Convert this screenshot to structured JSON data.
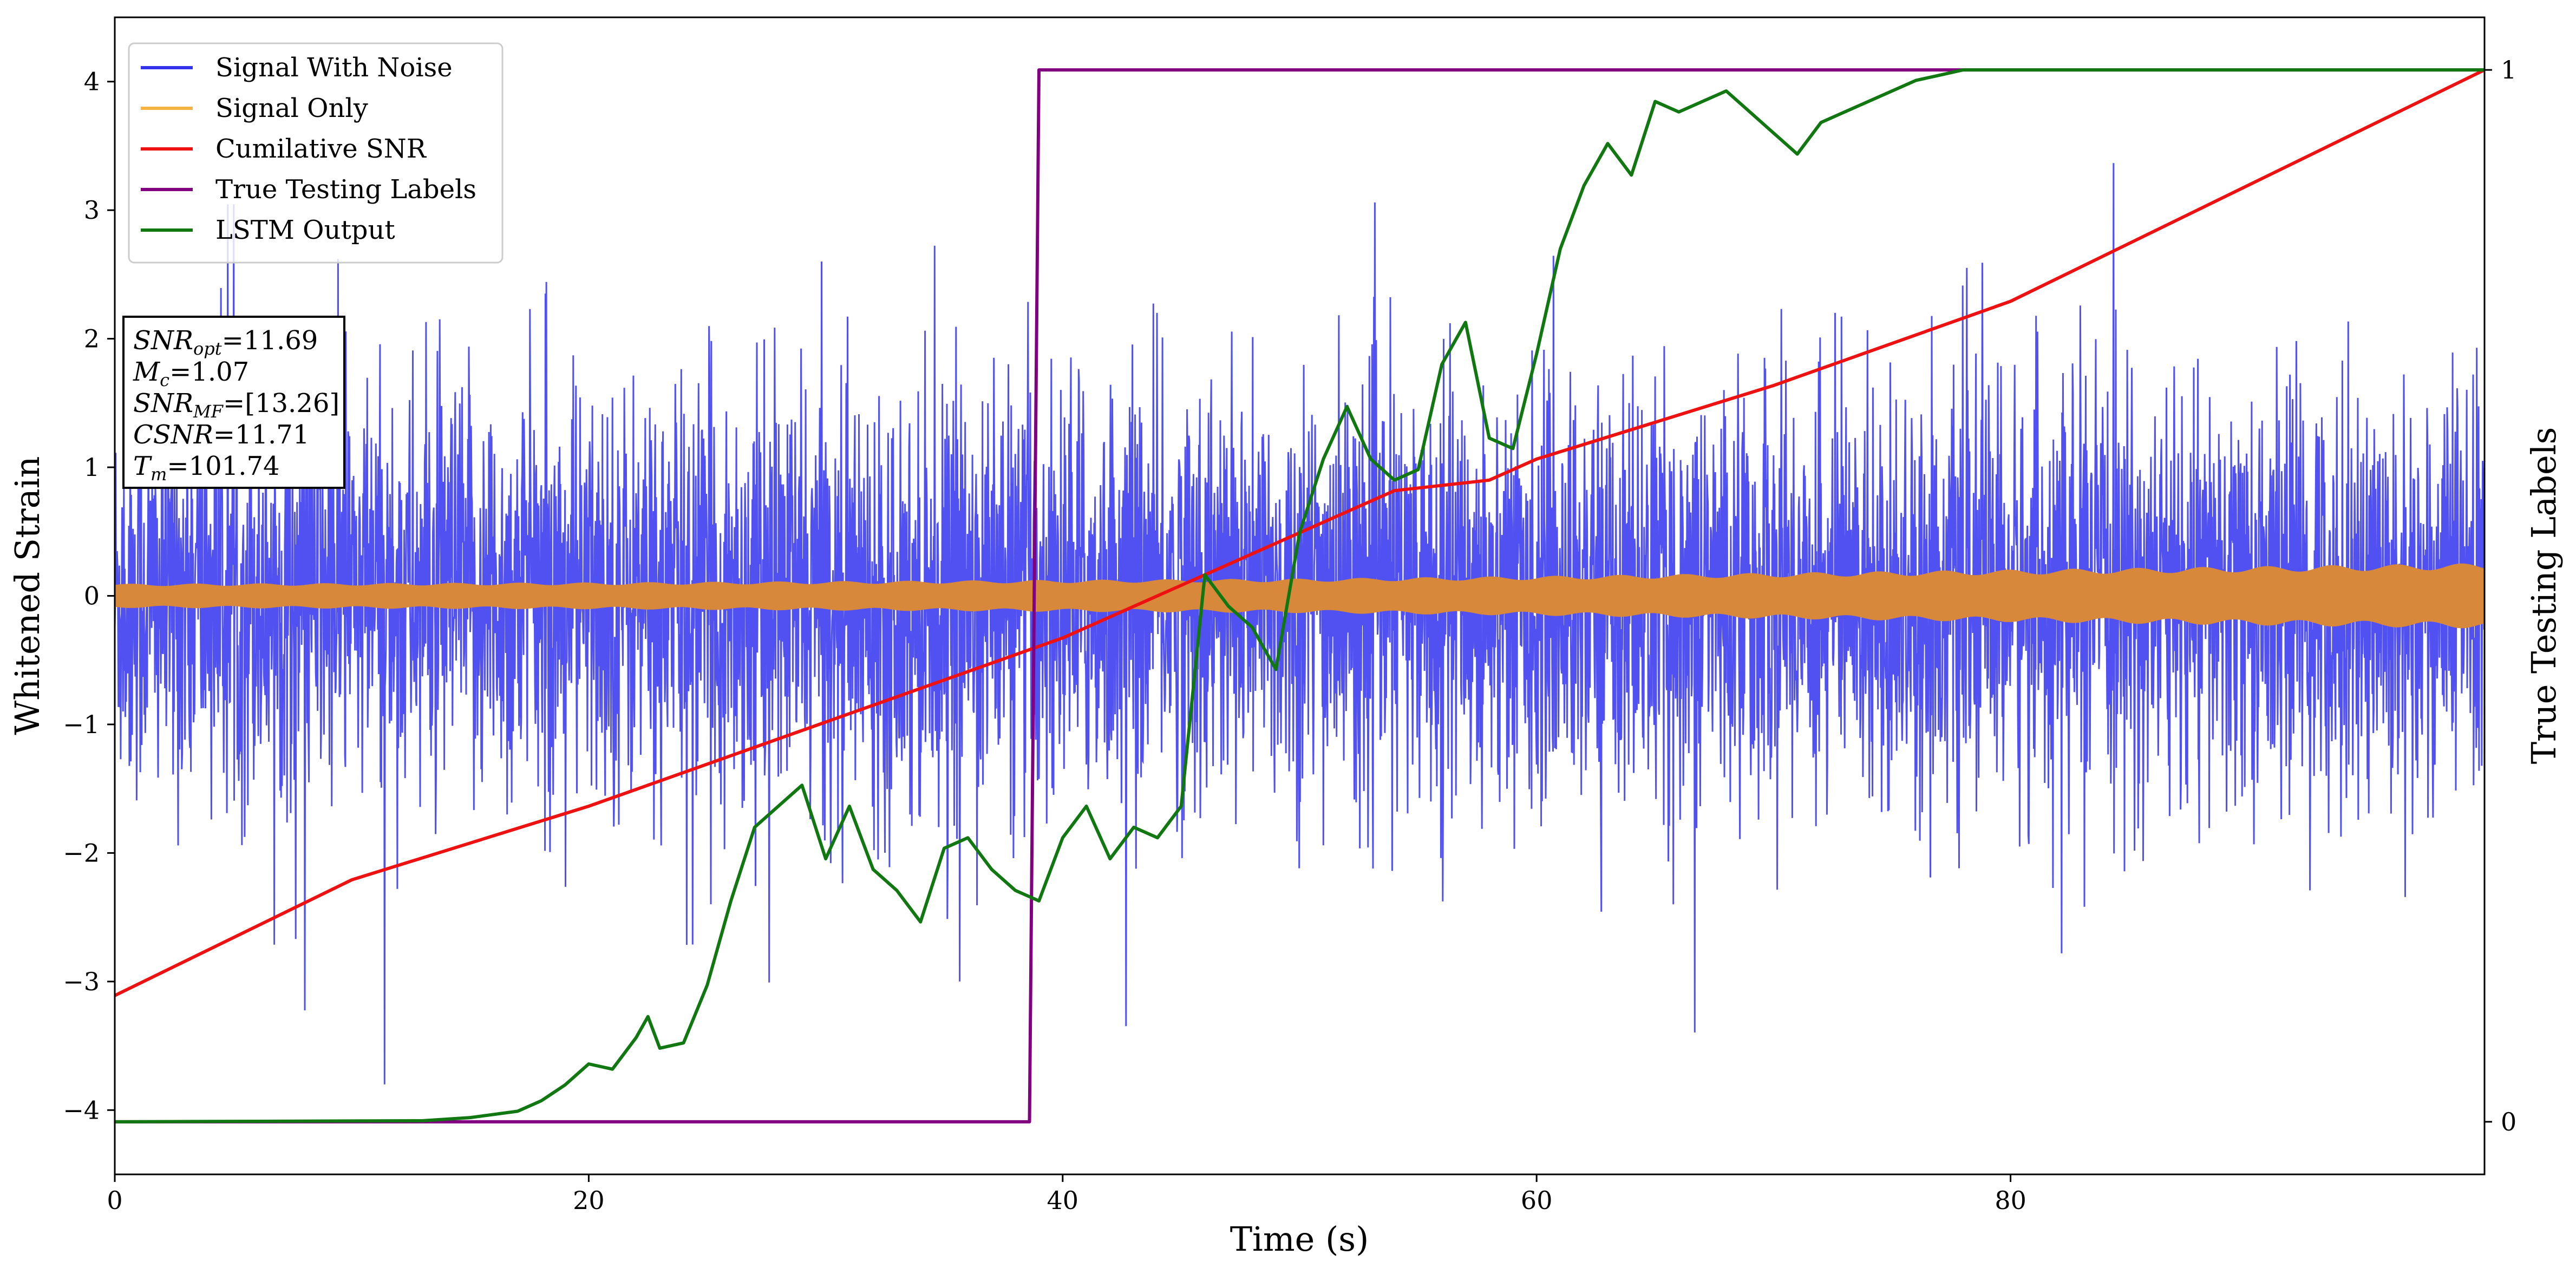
{
  "chart_data": {
    "type": "line",
    "xlabel": "Time (s)",
    "ylabel": "Whitened Strain",
    "ylabel_right": "True Testing Labels",
    "xlim": [
      0,
      100
    ],
    "ylim": [
      -4.5,
      4.5
    ],
    "ylim_right": [
      -0.05,
      1.05
    ],
    "xticks": [
      0,
      20,
      40,
      60,
      80
    ],
    "yticks": [
      -4,
      -3,
      -2,
      -1,
      0,
      1,
      2,
      3,
      4
    ],
    "yticks_right": [
      0,
      1
    ],
    "grid": false,
    "legend_position": "top-left",
    "legend": [
      {
        "label": "Signal With Noise",
        "color": "#3333ee"
      },
      {
        "label": "Signal Only",
        "color": "#f5b342"
      },
      {
        "label": "Cumilative SNR",
        "color": "#ee1111"
      },
      {
        "label": "True Testing Labels",
        "color": "#800080"
      },
      {
        "label": "LSTM Output",
        "color": "#117711"
      }
    ],
    "annotation": {
      "lines": [
        {
          "base": "SNR",
          "sub": "opt",
          "value": "=11.69"
        },
        {
          "base": "M",
          "sub": "c",
          "value": "=1.07"
        },
        {
          "base": "SNR",
          "sub": "MF",
          "value": "=[13.26]"
        },
        {
          "base": "CSNR",
          "sub": "",
          "value": "=11.71"
        },
        {
          "base": "T",
          "sub": "m",
          "value": "=101.74"
        }
      ]
    },
    "series": [
      {
        "name": "Signal With Noise",
        "axis": "left",
        "color": "#3333ee",
        "style": "dense-noise",
        "approx_std": 0.8,
        "approx_range": [
          -3.8,
          4.1
        ]
      },
      {
        "name": "Signal Only",
        "axis": "left",
        "color": "#d8883a",
        "style": "chirp-envelope",
        "x": [
          0,
          20,
          40,
          50,
          60,
          80,
          100
        ],
        "amplitude": [
          0.09,
          0.1,
          0.12,
          0.13,
          0.15,
          0.2,
          0.25
        ]
      },
      {
        "name": "Cumilative SNR",
        "axis": "right",
        "color": "#ee1111",
        "x": [
          0,
          10,
          20,
          30,
          40,
          50,
          54,
          58,
          60,
          70,
          80,
          90,
          100
        ],
        "y": [
          0.12,
          0.23,
          0.3,
          0.38,
          0.46,
          0.56,
          0.6,
          0.61,
          0.63,
          0.7,
          0.78,
          0.89,
          1.0
        ]
      },
      {
        "name": "True Testing Labels",
        "axis": "right",
        "color": "#800080",
        "x": [
          0,
          38.6,
          39.0,
          100
        ],
        "y": [
          0,
          0,
          1,
          1
        ]
      },
      {
        "name": "LSTM Output",
        "axis": "right",
        "color": "#117711",
        "x": [
          0,
          13,
          15,
          17,
          18,
          19,
          20,
          21,
          22,
          22.5,
          23,
          24,
          25,
          26,
          27,
          28,
          29,
          30,
          31,
          32,
          33,
          34,
          35,
          36,
          37,
          38,
          39,
          40,
          41,
          42,
          43,
          44,
          45,
          46,
          47,
          48,
          49,
          50,
          51,
          52,
          53,
          54,
          55,
          56,
          57,
          58,
          59,
          60,
          61,
          62,
          63,
          64,
          65,
          66,
          67,
          68,
          69,
          70,
          71,
          72,
          73,
          74,
          75,
          76,
          77,
          78,
          79,
          80,
          82,
          84,
          86,
          88,
          90,
          95,
          100
        ],
        "y": [
          0,
          0.001,
          0.004,
          0.01,
          0.02,
          0.035,
          0.055,
          0.05,
          0.08,
          0.1,
          0.07,
          0.075,
          0.13,
          0.21,
          0.28,
          0.3,
          0.32,
          0.25,
          0.3,
          0.24,
          0.22,
          0.19,
          0.26,
          0.27,
          0.24,
          0.22,
          0.21,
          0.27,
          0.3,
          0.25,
          0.28,
          0.27,
          0.3,
          0.52,
          0.49,
          0.47,
          0.43,
          0.56,
          0.63,
          0.68,
          0.63,
          0.61,
          0.62,
          0.72,
          0.76,
          0.65,
          0.64,
          0.73,
          0.83,
          0.89,
          0.93,
          0.9,
          0.97,
          0.96,
          0.97,
          0.98,
          0.96,
          0.94,
          0.92,
          0.95,
          0.96,
          0.97,
          0.98,
          0.99,
          0.995,
          1.0,
          1.0,
          1.0,
          1.0,
          1.0,
          1.0,
          1.0,
          1.0,
          1.0,
          1.0
        ]
      }
    ]
  }
}
